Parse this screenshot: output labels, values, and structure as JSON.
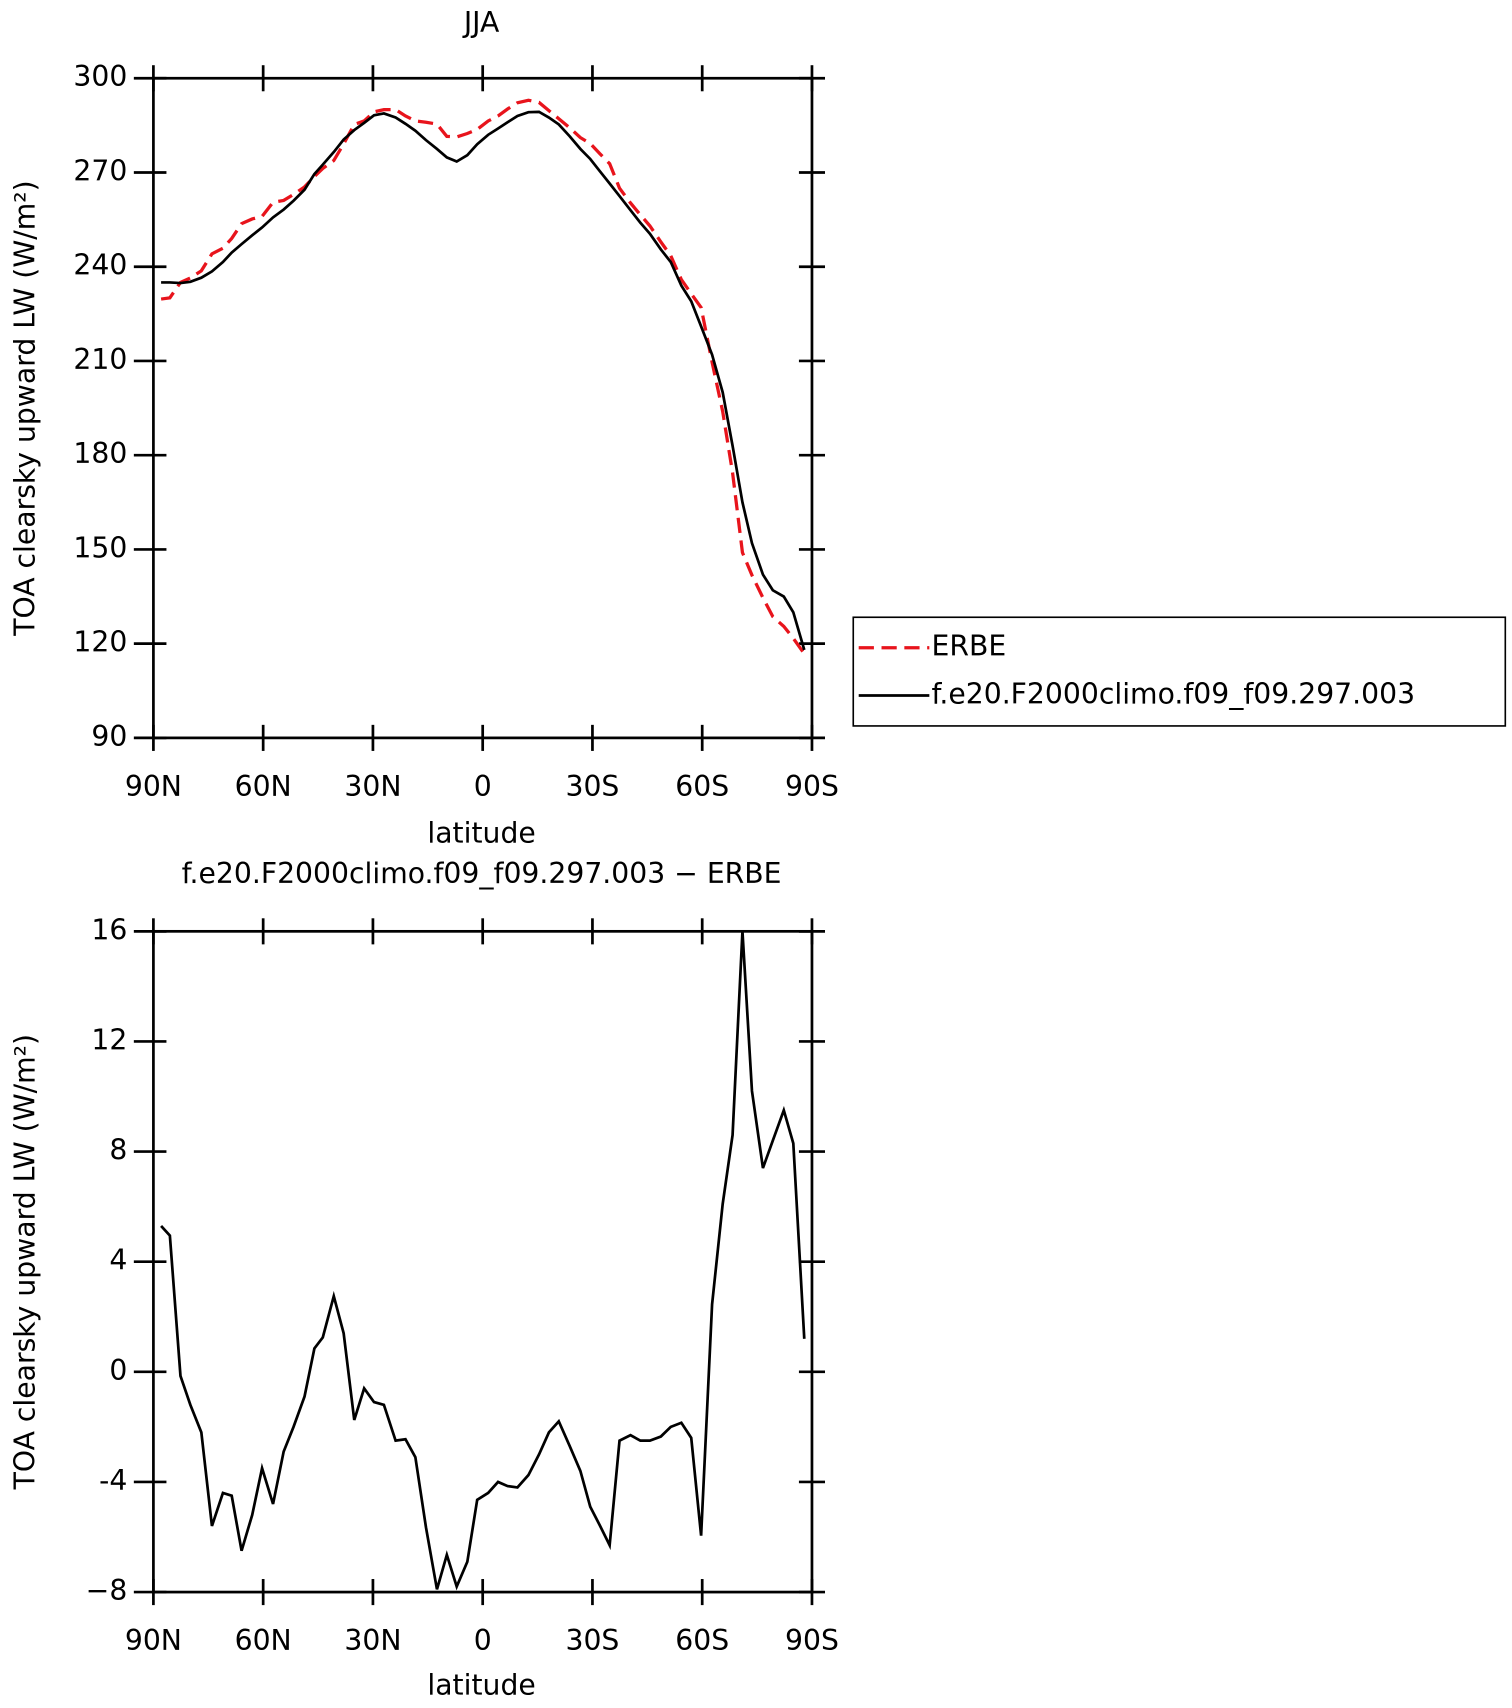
{
  "chart_data": [
    {
      "type": "line",
      "title": "JJA",
      "ylabel": "TOA clearsky upward LW (W/m²)",
      "xlabel": "latitude",
      "x": [
        87.9,
        85.5,
        82.6,
        79.9,
        76.9,
        74,
        71,
        68.6,
        65.9,
        63,
        60.3,
        57.3,
        54.4,
        51.7,
        48.7,
        46,
        43.7,
        40.7,
        38,
        35.1,
        32.4,
        29.7,
        27,
        23.8,
        21.1,
        18.4,
        15.5,
        12.5,
        9.8,
        7.1,
        4.2,
        1.5,
        -1.5,
        -4.2,
        -6.8,
        -9.5,
        -12.5,
        -15.4,
        -18.1,
        -20.8,
        -23.8,
        -26.7,
        -29.4,
        -32.1,
        -34.7,
        -37.4,
        -40.4,
        -43.1,
        -45.7,
        -48.7,
        -51.4,
        -54.3,
        -57,
        -59.7,
        -62.7,
        -65.6,
        -68.3,
        -71,
        -73.6,
        -76.6,
        -79.3,
        -82.3,
        -84.9,
        -87.9
      ],
      "series": [
        {
          "name": "ERBE",
          "color": "#e8141c",
          "dashed": true,
          "values": [
            229.7,
            230.1,
            235.0,
            236.4,
            238.7,
            244.1,
            245.9,
            249.0,
            253.7,
            255.2,
            256.0,
            260.5,
            261.1,
            263.0,
            265.4,
            268.7,
            271.3,
            273.8,
            279.1,
            285.3,
            286.4,
            289.3,
            290.0,
            290.0,
            288.0,
            286.4,
            286.0,
            285.4,
            281.5,
            281.3,
            282.4,
            283.7,
            286.4,
            288.0,
            290.2,
            292.2,
            293.0,
            292.3,
            289.7,
            287.1,
            284.2,
            281.1,
            279.2,
            275.9,
            272.8,
            265.0,
            260.3,
            256.5,
            253.0,
            247.9,
            243.5,
            235.9,
            231.4,
            227.0,
            209.6,
            193.9,
            174.4,
            149.0,
            141.8,
            134.6,
            128.6,
            125.5,
            121.7,
            116.8
          ]
        },
        {
          "name": "f.e20.F2000climo.f09_f09.297.003",
          "color": "#000000",
          "dashed": false,
          "values": [
            235.0,
            235.0,
            234.8,
            235.2,
            236.5,
            238.5,
            241.5,
            244.5,
            247.2,
            250.0,
            252.5,
            255.7,
            258.2,
            261.0,
            264.5,
            269.5,
            272.5,
            276.5,
            280.5,
            283.5,
            285.8,
            288.2,
            288.8,
            287.5,
            285.5,
            283.3,
            280.3,
            277.5,
            274.8,
            273.5,
            275.5,
            279.0,
            282.0,
            284.0,
            286.0,
            288.0,
            289.2,
            289.3,
            287.5,
            285.3,
            281.5,
            277.5,
            274.3,
            270.3,
            266.5,
            262.5,
            258.0,
            254.0,
            250.5,
            245.5,
            241.5,
            234.0,
            229.0,
            221.0,
            212.0,
            200.0,
            183.0,
            165.0,
            152.0,
            142.0,
            137.0,
            135.0,
            130.0,
            118.0
          ]
        }
      ],
      "xlim": [
        90,
        -90
      ],
      "xticks": [
        {
          "value": 90,
          "label": "90N"
        },
        {
          "value": 60,
          "label": "60N"
        },
        {
          "value": 30,
          "label": "30N"
        },
        0,
        {
          "value": -30,
          "label": "30S"
        },
        {
          "value": -60,
          "label": "60S"
        },
        {
          "value": -90,
          "label": "90S"
        }
      ],
      "ylim": [
        90,
        300
      ],
      "yticks": [
        90,
        120,
        150,
        180,
        210,
        240,
        270,
        300
      ],
      "legend": "right"
    },
    {
      "type": "line",
      "title": "f.e20.F2000climo.f09_f09.297.003 − ERBE",
      "ylabel": "TOA clearsky upward LW (W/m²)",
      "xlabel": "latitude",
      "x": [
        87.9,
        85.5,
        82.6,
        79.9,
        76.9,
        74,
        71,
        68.6,
        65.9,
        63,
        60.3,
        57.3,
        54.4,
        51.7,
        48.7,
        46,
        43.7,
        40.7,
        38,
        35.1,
        32.4,
        29.7,
        27,
        23.8,
        21.1,
        18.4,
        15.5,
        12.5,
        9.8,
        7.1,
        4.2,
        1.5,
        -1.5,
        -4.2,
        -6.8,
        -9.5,
        -12.5,
        -15.4,
        -18.1,
        -20.8,
        -23.8,
        -26.7,
        -29.4,
        -32.1,
        -34.7,
        -37.4,
        -40.4,
        -43.1,
        -45.7,
        -48.7,
        -51.4,
        -54.3,
        -57,
        -59.7,
        -62.7,
        -65.6,
        -68.3,
        -71,
        -73.6,
        -76.6,
        -79.3,
        -82.3,
        -84.9,
        -87.9
      ],
      "values": [
        5.3,
        4.95,
        -0.15,
        -1.2,
        -2.2,
        -5.6,
        -4.4,
        -4.5,
        -6.5,
        -5.2,
        -3.5,
        -4.8,
        -2.9,
        -2.0,
        -0.9,
        0.85,
        1.25,
        2.75,
        1.4,
        -1.75,
        -0.6,
        -1.1,
        -1.2,
        -2.5,
        -2.45,
        -3.1,
        -5.65,
        -7.9,
        -6.65,
        -7.8,
        -6.9,
        -4.65,
        -4.4,
        -4.0,
        -4.15,
        -4.2,
        -3.75,
        -3.0,
        -2.2,
        -1.8,
        -2.7,
        -3.6,
        -4.9,
        -5.6,
        -6.3,
        -2.5,
        -2.3,
        -2.5,
        -2.5,
        -2.35,
        -2.0,
        -1.85,
        -2.4,
        -5.95,
        2.45,
        6.1,
        8.6,
        16,
        10.2,
        7.4,
        8.4,
        9.5,
        8.3,
        1.2
      ],
      "color": "#000000",
      "xlim": [
        90,
        -90
      ],
      "xticks": [
        {
          "value": 90,
          "label": "90N"
        },
        {
          "value": 60,
          "label": "60N"
        },
        {
          "value": 30,
          "label": "30N"
        },
        0,
        {
          "value": -30,
          "label": "30S"
        },
        {
          "value": -60,
          "label": "60S"
        },
        {
          "value": -90,
          "label": "90S"
        }
      ],
      "ylim": [
        -8,
        16
      ],
      "yticks": [
        {
          "value": -8,
          "label": "−8"
        },
        -4,
        0,
        4,
        8,
        12,
        16
      ]
    }
  ]
}
